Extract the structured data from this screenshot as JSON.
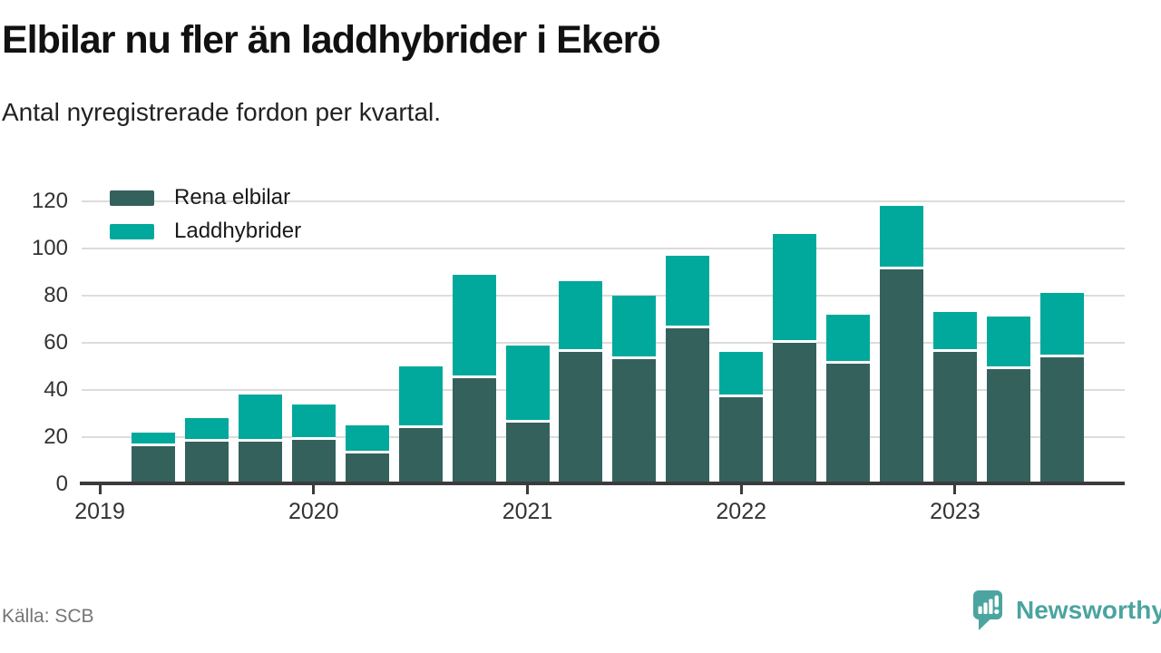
{
  "header": {
    "title": "Elbilar nu fler än laddhybrider i Ekerö",
    "subtitle": "Antal nyregistrerade fordon per kvartal."
  },
  "footer": {
    "source_label": "Källa: SCB",
    "brand_name": "Newsworthy"
  },
  "colors": {
    "rena_elbilar": "#35615d",
    "laddhybrider": "#00a99c",
    "gridline": "#dcdcdc",
    "axis": "#3b3b3b",
    "brand_teal": "#4ba49f"
  },
  "chart_data": {
    "type": "bar",
    "stacked": true,
    "title": "Elbilar nu fler än laddhybrider i Ekerö",
    "subtitle": "Antal nyregistrerade fordon per kvartal.",
    "source": "Källa: SCB",
    "categories": [
      "2019 K2",
      "2019 K3",
      "2019 K4",
      "2020 K1",
      "2020 K2",
      "2020 K3",
      "2020 K4",
      "2021 K1",
      "2021 K2",
      "2021 K3",
      "2021 K4",
      "2022 K1",
      "2022 K2",
      "2022 K3",
      "2022 K4",
      "2023 K1",
      "2023 K2",
      "2023 K3"
    ],
    "series": [
      {
        "name": "Rena elbilar",
        "color": "#35615d",
        "values": [
          16,
          18,
          18,
          19,
          13,
          24,
          45,
          26,
          56,
          53,
          66,
          37,
          60,
          51,
          91,
          56,
          49,
          54
        ]
      },
      {
        "name": "Laddhybrider",
        "color": "#00a99c",
        "values": [
          6,
          10,
          20,
          15,
          12,
          26,
          44,
          33,
          30,
          27,
          31,
          19,
          46,
          21,
          27,
          17,
          22,
          27
        ]
      }
    ],
    "totals": [
      22,
      28,
      38,
      34,
      25,
      50,
      89,
      59,
      86,
      80,
      97,
      56,
      106,
      72,
      118,
      73,
      71,
      81
    ],
    "y_ticks": [
      0,
      20,
      40,
      60,
      80,
      100,
      120
    ],
    "x_tick_labels": [
      "2019",
      "2020",
      "2021",
      "2022",
      "2023"
    ],
    "ylim": [
      0,
      120
    ],
    "grid": "horizontal",
    "legend_position": "top-left"
  }
}
